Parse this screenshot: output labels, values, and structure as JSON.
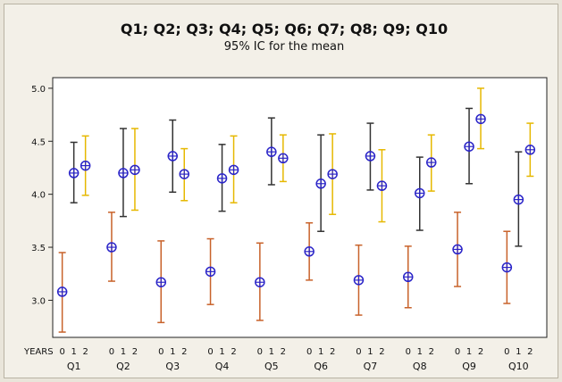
{
  "chart_data": {
    "type": "interval",
    "title": "Q1; Q2; Q3; Q4; Q5; Q6; Q7; Q8; Q9; Q10",
    "subtitle": "95% IC for the mean",
    "xlabel": "YEARS",
    "ylim": [
      2.65,
      5.1
    ],
    "yticks": [
      3.0,
      3.5,
      4.0,
      4.5,
      5.0
    ],
    "ytick_labels": [
      "3.0",
      "3.5",
      "4.0",
      "4.5",
      "5.0"
    ],
    "level_labels": [
      "0",
      "1",
      "2"
    ],
    "groups": [
      "Q1",
      "Q2",
      "Q3",
      "Q4",
      "Q5",
      "Q6",
      "Q7",
      "Q8",
      "Q9",
      "Q10"
    ],
    "level_colors": [
      "#c8622a",
      "#333333",
      "#e6b800"
    ],
    "marker_color": "#2a24c8",
    "intervals": [
      {
        "group": "Q1",
        "levels": [
          {
            "mean": 3.08,
            "low": 2.7,
            "high": 3.45
          },
          {
            "mean": 4.2,
            "low": 3.92,
            "high": 4.49
          },
          {
            "mean": 4.27,
            "low": 3.99,
            "high": 4.55
          }
        ]
      },
      {
        "group": "Q2",
        "levels": [
          {
            "mean": 3.5,
            "low": 3.18,
            "high": 3.83
          },
          {
            "mean": 4.2,
            "low": 3.79,
            "high": 4.62
          },
          {
            "mean": 4.23,
            "low": 3.85,
            "high": 4.62
          }
        ]
      },
      {
        "group": "Q3",
        "levels": [
          {
            "mean": 3.17,
            "low": 2.79,
            "high": 3.56
          },
          {
            "mean": 4.36,
            "low": 4.02,
            "high": 4.7
          },
          {
            "mean": 4.19,
            "low": 3.94,
            "high": 4.43
          }
        ]
      },
      {
        "group": "Q4",
        "levels": [
          {
            "mean": 3.27,
            "low": 2.96,
            "high": 3.58
          },
          {
            "mean": 4.15,
            "low": 3.84,
            "high": 4.47
          },
          {
            "mean": 4.23,
            "low": 3.92,
            "high": 4.55
          }
        ]
      },
      {
        "group": "Q5",
        "levels": [
          {
            "mean": 3.17,
            "low": 2.81,
            "high": 3.54
          },
          {
            "mean": 4.4,
            "low": 4.09,
            "high": 4.72
          },
          {
            "mean": 4.34,
            "low": 4.12,
            "high": 4.56
          }
        ]
      },
      {
        "group": "Q6",
        "levels": [
          {
            "mean": 3.46,
            "low": 3.19,
            "high": 3.73
          },
          {
            "mean": 4.1,
            "low": 3.65,
            "high": 4.56
          },
          {
            "mean": 4.19,
            "low": 3.81,
            "high": 4.57
          }
        ]
      },
      {
        "group": "Q7",
        "levels": [
          {
            "mean": 3.19,
            "low": 2.86,
            "high": 3.52
          },
          {
            "mean": 4.36,
            "low": 4.04,
            "high": 4.67
          },
          {
            "mean": 4.08,
            "low": 3.74,
            "high": 4.42
          }
        ]
      },
      {
        "group": "Q8",
        "levels": [
          {
            "mean": 3.22,
            "low": 2.93,
            "high": 3.51
          },
          {
            "mean": 4.01,
            "low": 3.66,
            "high": 4.35
          },
          {
            "mean": 4.3,
            "low": 4.03,
            "high": 4.56
          }
        ]
      },
      {
        "group": "Q9",
        "levels": [
          {
            "mean": 3.48,
            "low": 3.13,
            "high": 3.83
          },
          {
            "mean": 4.45,
            "low": 4.1,
            "high": 4.81
          },
          {
            "mean": 4.71,
            "low": 4.43,
            "high": 5.0
          }
        ]
      },
      {
        "group": "Q10",
        "levels": [
          {
            "mean": 3.31,
            "low": 2.97,
            "high": 3.65
          },
          {
            "mean": 3.95,
            "low": 3.51,
            "high": 4.4
          },
          {
            "mean": 4.42,
            "low": 4.17,
            "high": 4.67
          }
        ]
      }
    ]
  }
}
